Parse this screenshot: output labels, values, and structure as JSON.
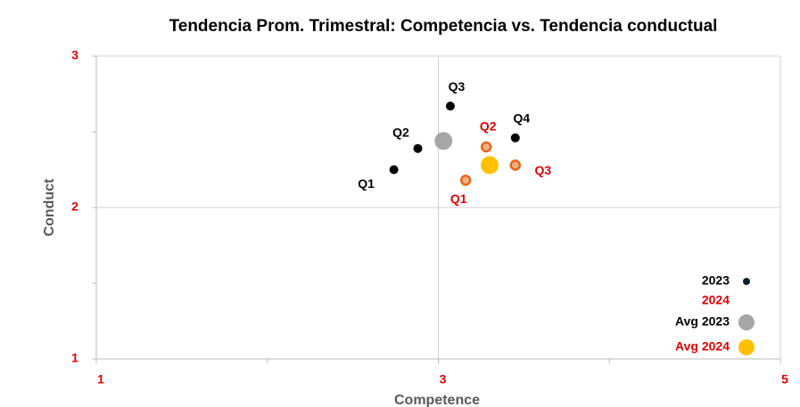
{
  "chart_data": {
    "type": "scatter",
    "title": "Tendencia Prom. Trimestral: Competencia vs. Tendencia conductual",
    "x_label": "Competence",
    "y_label": "Conduct",
    "xlim": [
      1,
      5
    ],
    "xticks": [
      1,
      3,
      5
    ],
    "xminor_ticks": [
      2,
      4
    ],
    "ylim": [
      1,
      3
    ],
    "yticks": [
      1,
      2,
      3
    ],
    "yminor_ticks": [
      1.5,
      2.5
    ],
    "grid": true,
    "legend": "lower right",
    "series": [
      {
        "name": "2023",
        "color": "#000000",
        "label_color": "#000000",
        "labels": [
          "Q1",
          "Q2",
          "Q3",
          "Q4"
        ],
        "x": [
          2.74,
          2.88,
          3.07,
          3.45
        ],
        "values": [
          2.25,
          2.39,
          2.67,
          2.46
        ]
      },
      {
        "name": "2024",
        "color": "#f4b183",
        "label_color": "#e00000",
        "labels": [
          "Q1",
          "Q2",
          "Q3"
        ],
        "x": [
          3.16,
          3.28,
          3.45
        ],
        "values": [
          2.18,
          2.4,
          2.28
        ]
      },
      {
        "name": "Avg 2023",
        "color": "#a6a6a6",
        "label_color": "#000000",
        "x": [
          3.03
        ],
        "values": [
          2.44
        ]
      },
      {
        "name": "Avg 2024",
        "color": "#ffc000",
        "label_color": "#e00000",
        "x": [
          3.3
        ],
        "values": [
          2.28
        ]
      }
    ]
  }
}
